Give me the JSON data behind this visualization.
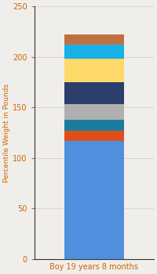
{
  "category": "Boy 19 years 8 months",
  "segments": [
    {
      "value": 117,
      "color": "#4f8fde"
    },
    {
      "value": 10,
      "color": "#e04e1a"
    },
    {
      "value": 11,
      "color": "#1a7d9e"
    },
    {
      "value": 15,
      "color": "#b0b0b0"
    },
    {
      "value": 22,
      "color": "#2c3e6b"
    },
    {
      "value": 23,
      "color": "#fdd96a"
    },
    {
      "value": 14,
      "color": "#18b0e8"
    },
    {
      "value": 10,
      "color": "#c07040"
    }
  ],
  "ylim": [
    0,
    250
  ],
  "yticks": [
    0,
    50,
    100,
    150,
    200,
    250
  ],
  "ylabel": "Percentile Weight in Pounds",
  "ylabel_color": "#cc6600",
  "tick_color": "#cc6600",
  "axis_color": "#333333",
  "bg_color": "#f0eeea",
  "bar_width": 0.6,
  "figsize": [
    2.0,
    3.5
  ],
  "dpi": 100
}
